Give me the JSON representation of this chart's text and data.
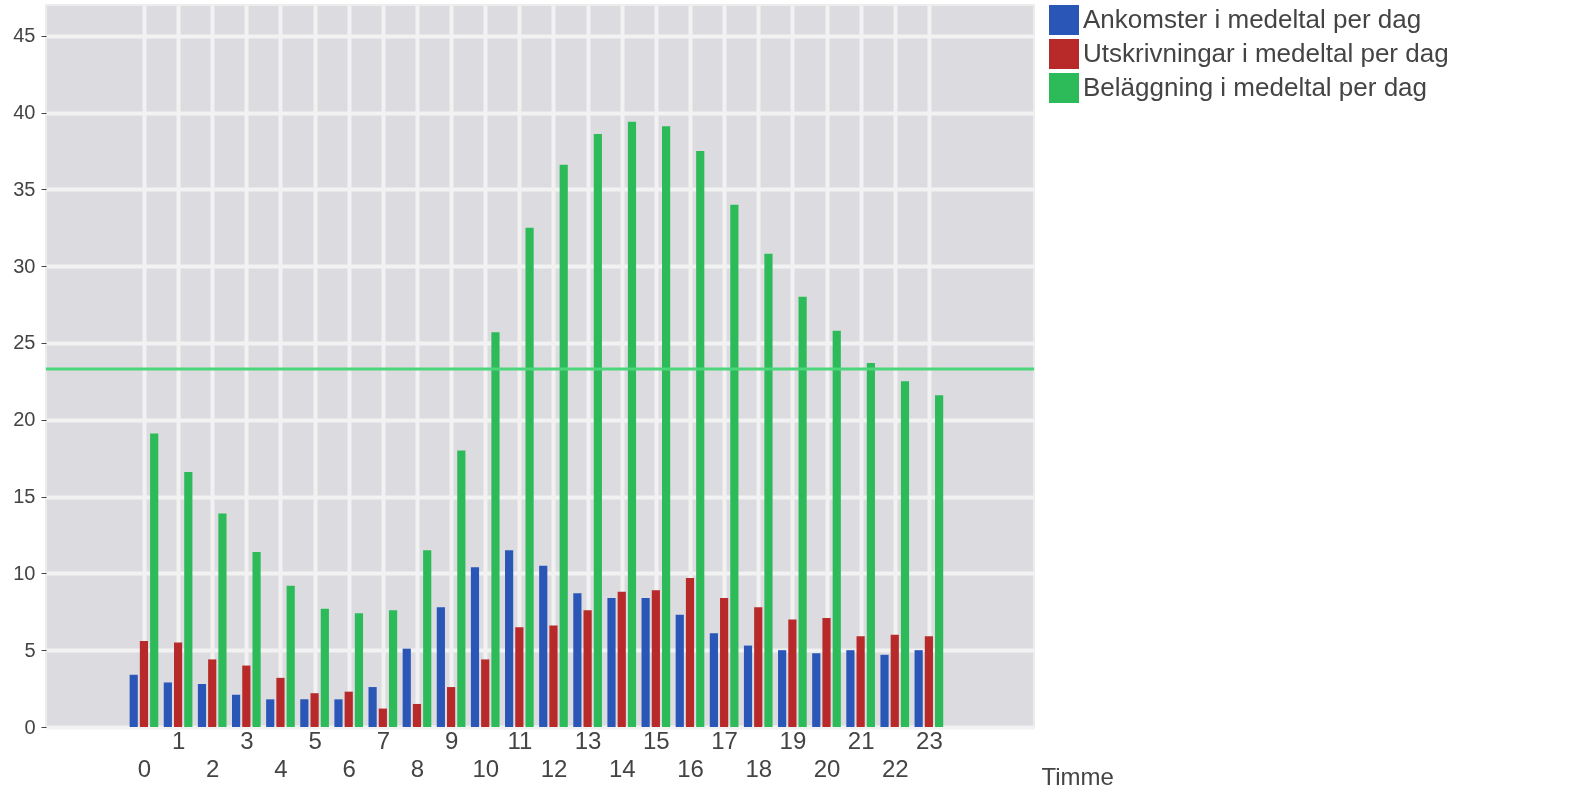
{
  "chart_data": {
    "type": "bar",
    "xlabel": "Timme",
    "categories": [
      "0",
      "1",
      "2",
      "3",
      "4",
      "5",
      "6",
      "7",
      "8",
      "9",
      "10",
      "11",
      "12",
      "13",
      "14",
      "15",
      "16",
      "17",
      "18",
      "19",
      "20",
      "21",
      "22",
      "23"
    ],
    "series": [
      {
        "name": "Ankomster i medeltal per dag",
        "color": "#2a56b8",
        "values": [
          3.4,
          2.9,
          2.8,
          2.1,
          1.8,
          1.8,
          1.8,
          2.6,
          5.1,
          7.8,
          10.4,
          11.5,
          10.5,
          8.7,
          8.4,
          8.4,
          7.3,
          6.1,
          5.3,
          5.0,
          4.8,
          5.0,
          4.7,
          5.0
        ]
      },
      {
        "name": "Utskrivningar i medeltal per dag",
        "color": "#b82a2a",
        "values": [
          5.6,
          5.5,
          4.4,
          4.0,
          3.2,
          2.2,
          2.3,
          1.2,
          1.5,
          2.6,
          4.4,
          6.5,
          6.6,
          7.6,
          8.8,
          8.9,
          9.7,
          8.4,
          7.8,
          7.0,
          7.1,
          5.9,
          6.0,
          5.9
        ]
      },
      {
        "name": "Beläggning i medeltal per dag",
        "color": "#2dbb5a",
        "values": [
          19.1,
          16.6,
          13.9,
          11.4,
          9.2,
          7.7,
          7.4,
          7.6,
          11.5,
          18.0,
          25.7,
          32.5,
          36.6,
          38.6,
          39.4,
          39.1,
          37.5,
          34.0,
          30.8,
          28.0,
          25.8,
          23.7,
          22.5,
          21.6
        ]
      }
    ],
    "ref_lines": [
      {
        "axis": "y",
        "value": 23.3,
        "color": "#4dd57a"
      }
    ],
    "ylim": [
      0,
      47
    ],
    "yticks": [
      0,
      5,
      10,
      15,
      20,
      25,
      30,
      35,
      40,
      45
    ],
    "grid": true,
    "legend": "top right"
  }
}
